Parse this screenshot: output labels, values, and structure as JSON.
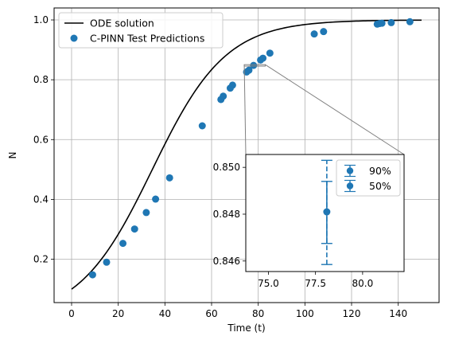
{
  "chart_data": [
    {
      "type": "line",
      "title": "",
      "xlabel": "Time (t)",
      "ylabel": "N",
      "xlim": [
        -7.5,
        157.5
      ],
      "ylim": [
        0.055,
        1.04
      ],
      "xticks": [
        0,
        20,
        40,
        60,
        80,
        100,
        120,
        140
      ],
      "yticks": [
        0.2,
        0.4,
        0.6,
        0.8,
        1.0
      ],
      "xtick_labels": [
        "0",
        "20",
        "40",
        "60",
        "80",
        "100",
        "120",
        "140"
      ],
      "ytick_labels": [
        "0.2",
        "0.4",
        "0.6",
        "0.8",
        "1.0"
      ],
      "grid": true,
      "legend_position": "top-left",
      "series": [
        {
          "name": "ODE solution",
          "kind": "line",
          "color": "#000000",
          "model": {
            "form": "logistic",
            "N0": 0.1,
            "r": 0.0635,
            "K": 1.0
          },
          "x_range": [
            0,
            150
          ]
        },
        {
          "name": "C-PINN Test Predictions",
          "kind": "scatter",
          "color": "#1f77b4",
          "points": [
            [
              9,
              0.148
            ],
            [
              15,
              0.19
            ],
            [
              22,
              0.253
            ],
            [
              27,
              0.301
            ],
            [
              32,
              0.356
            ],
            [
              36,
              0.401
            ],
            [
              42,
              0.472
            ],
            [
              56,
              0.646
            ],
            [
              64,
              0.734
            ],
            [
              65,
              0.745
            ],
            [
              68,
              0.772
            ],
            [
              69,
              0.782
            ],
            [
              75,
              0.826
            ],
            [
              76,
              0.832
            ],
            [
              78,
              0.848
            ],
            [
              81,
              0.866
            ],
            [
              82,
              0.872
            ],
            [
              85,
              0.889
            ],
            [
              104,
              0.953
            ],
            [
              108,
              0.961
            ],
            [
              131,
              0.986
            ],
            [
              132,
              0.988
            ],
            [
              133,
              0.989
            ],
            [
              137,
              0.991
            ],
            [
              145,
              0.994
            ]
          ]
        }
      ]
    },
    {
      "type": "scatter",
      "title": "",
      "inset": true,
      "zoom_box": {
        "x": [
          74,
          83
        ],
        "y": [
          0.8456,
          0.8505
        ]
      },
      "xlim": [
        73.8,
        82.2
      ],
      "ylim": [
        0.84555,
        0.85055
      ],
      "xticks": [
        75.0,
        77.5,
        80.0
      ],
      "yticks": [
        0.846,
        0.848,
        0.85
      ],
      "xtick_labels": [
        "75.0",
        "77.5",
        "80.0"
      ],
      "ytick_labels": [
        "0.846",
        "0.848",
        "0.850"
      ],
      "grid": false,
      "legend_position": "top-right",
      "series": [
        {
          "name": "90%",
          "x": 78.1,
          "y": 0.8481,
          "err_low": 0.84585,
          "err_high": 0.8503,
          "linestyle": "dashed",
          "color": "#1f77b4"
        },
        {
          "name": "50%",
          "x": 78.1,
          "y": 0.8481,
          "err_low": 0.84675,
          "err_high": 0.8494,
          "linestyle": "solid",
          "color": "#1f77b4"
        }
      ]
    }
  ]
}
